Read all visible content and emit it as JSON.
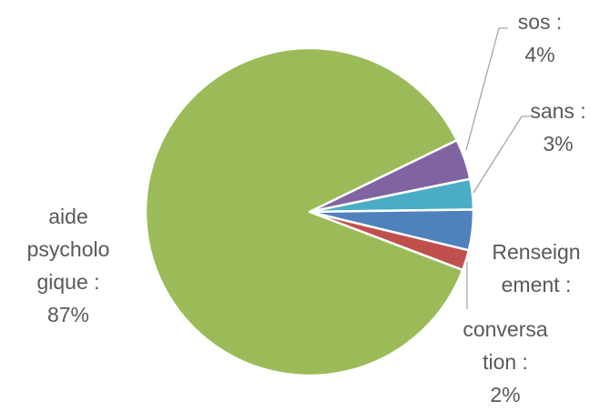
{
  "chart_data": {
    "type": "pie",
    "title": "",
    "slices": [
      {
        "label": "aide psychologique",
        "value": 87,
        "color": "#9BBB59"
      },
      {
        "label": "sos",
        "value": 4,
        "color": "#8064A2"
      },
      {
        "label": "sans",
        "value": 3,
        "color": "#4BACC6"
      },
      {
        "label": "Renseignement",
        "value": 4,
        "color": "#4F81BD"
      },
      {
        "label": "conversation",
        "value": 2,
        "color": "#C0504D"
      }
    ],
    "labels": {
      "sos": [
        "sos :",
        "4%"
      ],
      "sans": [
        "sans :",
        "3%"
      ],
      "renseignement": [
        "Renseign",
        "ement  :"
      ],
      "conversation": [
        "conversa",
        "tion :",
        "2%"
      ],
      "aide": [
        "aide",
        "psycholo",
        "gique :",
        "87%"
      ]
    }
  }
}
